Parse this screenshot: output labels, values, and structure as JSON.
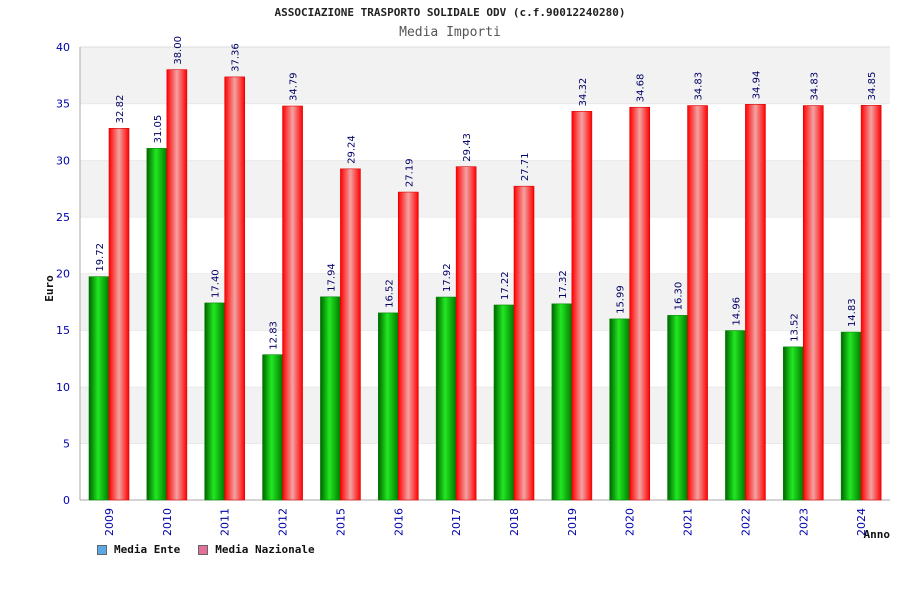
{
  "title": "ASSOCIAZIONE TRASPORTO SOLIDALE ODV (c.f.90012240280)",
  "subtitle": "Media Importi",
  "legend": {
    "ente_label": "Media Ente",
    "ente_color": "#5aa9e6",
    "nazionale_label": "Media Nazionale",
    "nazionale_color": "#e36f9b"
  },
  "chart_data": {
    "type": "bar",
    "title": "ASSOCIAZIONE TRASPORTO SOLIDALE ODV (c.f.90012240280)",
    "subtitle": "Media Importi",
    "xlabel": "Anno",
    "ylabel": "Euro",
    "ylim": [
      0,
      40
    ],
    "yticks": [
      0,
      5,
      10,
      15,
      20,
      25,
      30,
      35,
      40
    ],
    "grid": "horizontal bands",
    "legend_position": "bottom-left",
    "categories": [
      "2009",
      "2010",
      "2011",
      "2012",
      "2015",
      "2016",
      "2017",
      "2018",
      "2019",
      "2020",
      "2021",
      "2022",
      "2023",
      "2024"
    ],
    "series": [
      {
        "name": "Media Ente",
        "color": "#00b000",
        "value_labels": [
          "19.72",
          "31.05",
          "17.40",
          "12.83",
          "17.94",
          "16.52",
          "17.92",
          "17.22",
          "17.32",
          "15.99",
          "16.30",
          "14.96",
          "13.52",
          "14.83"
        ],
        "values": [
          19.72,
          31.05,
          17.4,
          12.83,
          17.94,
          16.52,
          17.92,
          17.22,
          17.32,
          15.99,
          16.3,
          14.96,
          13.52,
          14.83
        ]
      },
      {
        "name": "Media Nazionale",
        "color": "#e8202a",
        "value_labels": [
          "32.82",
          "38.00",
          "37.36",
          "34.79",
          "29.24",
          "27.19",
          "29.43",
          "27.71",
          "34.32",
          "34.68",
          "34.83",
          "34.94",
          "34.83",
          "34.85"
        ],
        "values": [
          32.82,
          38.0,
          37.36,
          34.79,
          29.24,
          27.19,
          29.43,
          27.71,
          34.32,
          34.68,
          34.83,
          34.94,
          34.83,
          34.85
        ]
      }
    ]
  }
}
